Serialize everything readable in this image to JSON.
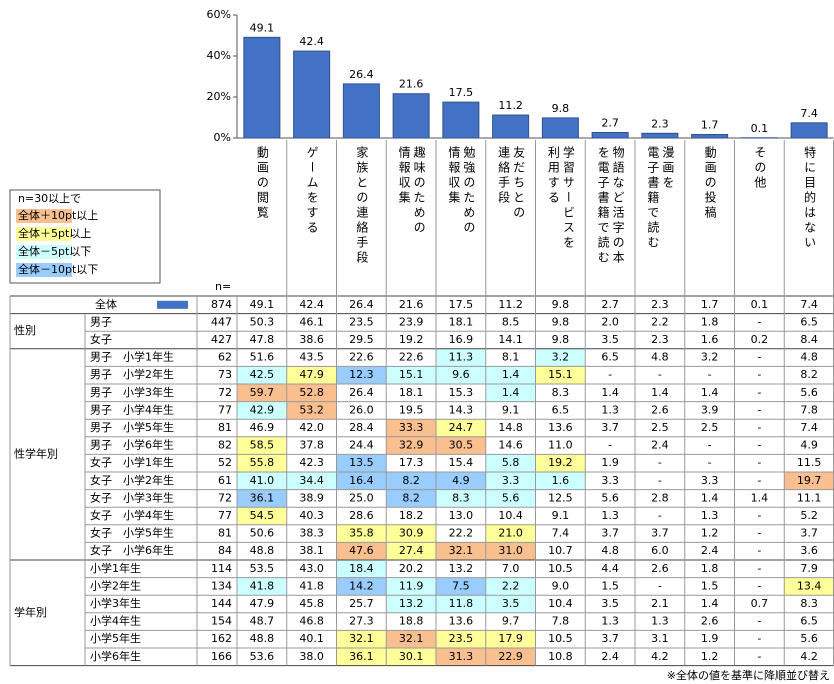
{
  "chart_data": {
    "type": "bar",
    "categories": [
      "動画の閲覧",
      "ゲームをする",
      "家族との連絡手段",
      "趣味のための\n情報収集",
      "勉強のための\n情報収集",
      "友だちとの\n連絡手段",
      "学習サービスを\n利用する",
      "物語など活字の本\nを電子書籍で読む",
      "漫画を\n電子書籍で読む",
      "動画の投稿",
      "その他",
      "特に目的はない"
    ],
    "values": [
      49.1,
      42.4,
      26.4,
      21.6,
      17.5,
      11.2,
      9.8,
      2.7,
      2.3,
      1.7,
      0.1,
      7.4
    ],
    "color": "#4472c4",
    "ylim": [
      0,
      60
    ],
    "yticks": [
      {
        "value": 0,
        "label": "0%"
      },
      {
        "value": 20,
        "label": "20%"
      },
      {
        "value": 40,
        "label": "40%"
      },
      {
        "value": 60,
        "label": "60%"
      }
    ]
  },
  "legend": {
    "title": "n=30以上で",
    "items": [
      {
        "label": "全体＋10pt以上",
        "color": "#f9bf8f"
      },
      {
        "label": "全体＋5pt以上",
        "color": "#ffff99"
      },
      {
        "label": "全体－5pt以下",
        "color": "#ccffff"
      },
      {
        "label": "全体－10pt以下",
        "color": "#99ccff"
      }
    ]
  },
  "n_header": "n=",
  "table": {
    "total": {
      "label": "全体",
      "n": 874,
      "values": [
        "49.1",
        "42.4",
        "26.4",
        "21.6",
        "17.5",
        "11.2",
        "9.8",
        "2.7",
        "2.3",
        "1.7",
        "0.1",
        "7.4"
      ]
    },
    "groups": [
      {
        "label": "性別",
        "rows": [
          {
            "label": "男子",
            "n": 447,
            "values": [
              "50.3",
              "46.1",
              "23.5",
              "23.9",
              "18.1",
              "8.5",
              "9.8",
              "2.0",
              "2.2",
              "1.8",
              "-",
              "6.5"
            ]
          },
          {
            "label": "女子",
            "n": 427,
            "values": [
              "47.8",
              "38.6",
              "29.5",
              "19.2",
              "16.9",
              "14.1",
              "9.8",
              "3.5",
              "2.3",
              "1.6",
              "0.2",
              "8.4"
            ]
          }
        ]
      },
      {
        "label": "性学年別",
        "rows": [
          {
            "label": "男子　小学1年生",
            "n": 62,
            "values": [
              "51.6",
              "43.5",
              "22.6",
              "22.6",
              "11.3",
              "8.1",
              "3.2",
              "6.5",
              "4.8",
              "3.2",
              "-",
              "4.8"
            ],
            "shade": [
              null,
              null,
              null,
              null,
              2,
              null,
              2,
              null,
              null,
              null,
              null,
              null
            ]
          },
          {
            "label": "男子　小学2年生",
            "n": 73,
            "values": [
              "42.5",
              "47.9",
              "12.3",
              "15.1",
              "9.6",
              "1.4",
              "15.1",
              "-",
              "-",
              "-",
              "-",
              "8.2"
            ],
            "shade": [
              2,
              1,
              3,
              2,
              2,
              2,
              1,
              null,
              null,
              null,
              null,
              null
            ]
          },
          {
            "label": "男子　小学3年生",
            "n": 72,
            "values": [
              "59.7",
              "52.8",
              "26.4",
              "18.1",
              "15.3",
              "1.4",
              "8.3",
              "1.4",
              "1.4",
              "1.4",
              "-",
              "5.6"
            ],
            "shade": [
              0,
              0,
              null,
              null,
              null,
              2,
              null,
              null,
              null,
              null,
              null,
              null
            ]
          },
          {
            "label": "男子　小学4年生",
            "n": 77,
            "values": [
              "42.9",
              "53.2",
              "26.0",
              "19.5",
              "14.3",
              "9.1",
              "6.5",
              "1.3",
              "2.6",
              "3.9",
              "-",
              "7.8"
            ],
            "shade": [
              2,
              0,
              null,
              null,
              null,
              null,
              null,
              null,
              null,
              null,
              null,
              null
            ]
          },
          {
            "label": "男子　小学5年生",
            "n": 81,
            "values": [
              "46.9",
              "42.0",
              "28.4",
              "33.3",
              "24.7",
              "14.8",
              "13.6",
              "3.7",
              "2.5",
              "2.5",
              "-",
              "7.4"
            ],
            "shade": [
              null,
              null,
              null,
              0,
              1,
              null,
              null,
              null,
              null,
              null,
              null,
              null
            ]
          },
          {
            "label": "男子　小学6年生",
            "n": 82,
            "values": [
              "58.5",
              "37.8",
              "24.4",
              "32.9",
              "30.5",
              "14.6",
              "11.0",
              "-",
              "2.4",
              "-",
              "-",
              "4.9"
            ],
            "shade": [
              1,
              null,
              null,
              0,
              0,
              null,
              null,
              null,
              null,
              null,
              null,
              null
            ]
          },
          {
            "label": "女子　小学1年生",
            "n": 52,
            "values": [
              "55.8",
              "42.3",
              "13.5",
              "17.3",
              "15.4",
              "5.8",
              "19.2",
              "1.9",
              "-",
              "-",
              "-",
              "11.5"
            ],
            "shade": [
              1,
              null,
              3,
              null,
              null,
              2,
              1,
              null,
              null,
              null,
              null,
              null
            ]
          },
          {
            "label": "女子　小学2年生",
            "n": 61,
            "values": [
              "41.0",
              "34.4",
              "16.4",
              "8.2",
              "4.9",
              "3.3",
              "1.6",
              "3.3",
              "-",
              "3.3",
              "-",
              "19.7"
            ],
            "shade": [
              2,
              2,
              3,
              3,
              3,
              2,
              2,
              null,
              null,
              null,
              null,
              0
            ]
          },
          {
            "label": "女子　小学3年生",
            "n": 72,
            "values": [
              "36.1",
              "38.9",
              "25.0",
              "8.2",
              "8.3",
              "5.6",
              "12.5",
              "5.6",
              "2.8",
              "1.4",
              "1.4",
              "11.1"
            ],
            "shade": [
              3,
              null,
              null,
              3,
              2,
              2,
              null,
              null,
              null,
              null,
              null,
              null
            ]
          },
          {
            "label": "女子　小学4年生",
            "n": 77,
            "values": [
              "54.5",
              "40.3",
              "28.6",
              "18.2",
              "13.0",
              "10.4",
              "9.1",
              "1.3",
              "-",
              "1.3",
              "-",
              "5.2"
            ],
            "shade": [
              1,
              null,
              null,
              null,
              null,
              null,
              null,
              null,
              null,
              null,
              null,
              null
            ]
          },
          {
            "label": "女子　小学5年生",
            "n": 81,
            "values": [
              "50.6",
              "38.3",
              "35.8",
              "30.9",
              "22.2",
              "21.0",
              "7.4",
              "3.7",
              "3.7",
              "1.2",
              "-",
              "3.7"
            ],
            "shade": [
              null,
              null,
              1,
              1,
              null,
              1,
              null,
              null,
              null,
              null,
              null,
              null
            ]
          },
          {
            "label": "女子　小学6年生",
            "n": 84,
            "values": [
              "48.8",
              "38.1",
              "47.6",
              "27.4",
              "32.1",
              "31.0",
              "10.7",
              "4.8",
              "6.0",
              "2.4",
              "-",
              "3.6"
            ],
            "shade": [
              null,
              null,
              0,
              1,
              0,
              0,
              null,
              null,
              null,
              null,
              null,
              null
            ]
          }
        ]
      },
      {
        "label": "学年別",
        "rows": [
          {
            "label": "小学1年生",
            "n": 114,
            "values": [
              "53.5",
              "43.0",
              "18.4",
              "20.2",
              "13.2",
              "7.0",
              "10.5",
              "4.4",
              "2.6",
              "1.8",
              "-",
              "7.9"
            ],
            "shade": [
              null,
              null,
              2,
              null,
              null,
              null,
              null,
              null,
              null,
              null,
              null,
              null
            ]
          },
          {
            "label": "小学2年生",
            "n": 134,
            "values": [
              "41.8",
              "41.8",
              "14.2",
              "11.9",
              "7.5",
              "2.2",
              "9.0",
              "1.5",
              "-",
              "1.5",
              "-",
              "13.4"
            ],
            "shade": [
              2,
              null,
              3,
              2,
              3,
              2,
              null,
              null,
              null,
              null,
              null,
              1
            ]
          },
          {
            "label": "小学3年生",
            "n": 144,
            "values": [
              "47.9",
              "45.8",
              "25.7",
              "13.2",
              "11.8",
              "3.5",
              "10.4",
              "3.5",
              "2.1",
              "1.4",
              "0.7",
              "8.3"
            ],
            "shade": [
              null,
              null,
              null,
              2,
              2,
              2,
              null,
              null,
              null,
              null,
              null,
              null
            ]
          },
          {
            "label": "小学4年生",
            "n": 154,
            "values": [
              "48.7",
              "46.8",
              "27.3",
              "18.8",
              "13.6",
              "9.7",
              "7.8",
              "1.3",
              "1.3",
              "2.6",
              "-",
              "6.5"
            ]
          },
          {
            "label": "小学5年生",
            "n": 162,
            "values": [
              "48.8",
              "40.1",
              "32.1",
              "32.1",
              "23.5",
              "17.9",
              "10.5",
              "3.7",
              "3.1",
              "1.9",
              "-",
              "5.6"
            ],
            "shade": [
              null,
              null,
              1,
              0,
              1,
              1,
              null,
              null,
              null,
              null,
              null,
              null
            ]
          },
          {
            "label": "小学6年生",
            "n": 166,
            "values": [
              "53.6",
              "38.0",
              "36.1",
              "30.1",
              "31.3",
              "22.9",
              "10.8",
              "2.4",
              "4.2",
              "1.2",
              "-",
              "4.2"
            ],
            "shade": [
              null,
              null,
              1,
              1,
              0,
              0,
              null,
              null,
              null,
              null,
              null,
              null
            ]
          }
        ]
      }
    ]
  },
  "footnote": "※全体の値を基準に降順並び替え"
}
